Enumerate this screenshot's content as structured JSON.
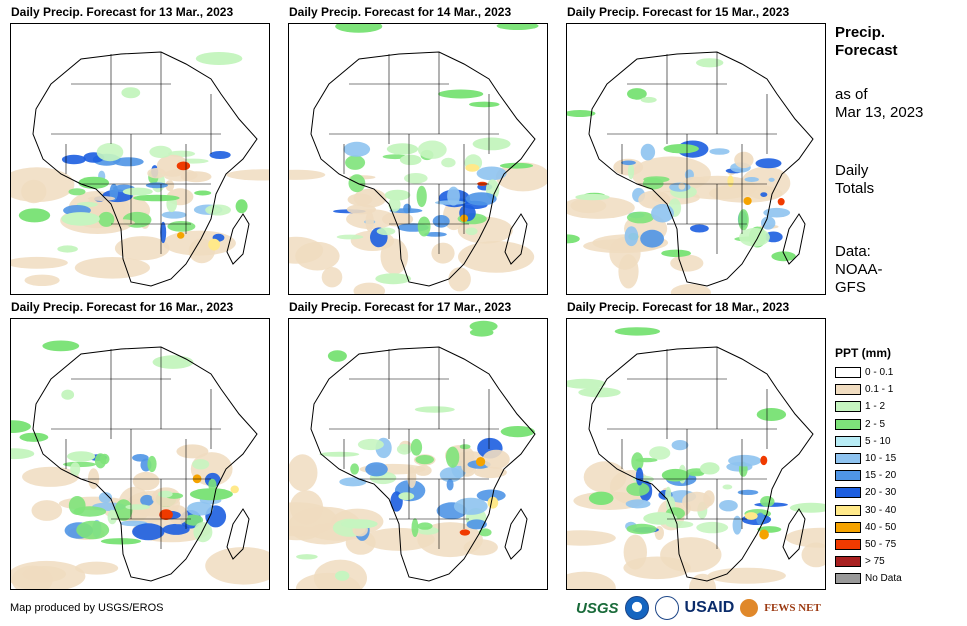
{
  "panels": [
    {
      "title": "Daily Precip. Forecast for 13 Mar., 2023"
    },
    {
      "title": "Daily Precip. Forecast for 14 Mar., 2023"
    },
    {
      "title": "Daily Precip. Forecast for 15 Mar., 2023"
    },
    {
      "title": "Daily Precip. Forecast for 16 Mar., 2023"
    },
    {
      "title": "Daily Precip. Forecast for 17 Mar., 2023"
    },
    {
      "title": "Daily Precip. Forecast for 18 Mar., 2023"
    }
  ],
  "side": {
    "heading_line1": "Precip.",
    "heading_line2": "Forecast",
    "asof_line1": "as of",
    "asof_line2": "Mar 13, 2023",
    "totals_line1": "Daily",
    "totals_line2": "Totals",
    "data_line1": "Data:",
    "data_line2": "NOAA-",
    "data_line3": "GFS"
  },
  "legend": {
    "title": "PPT (mm)",
    "items": [
      {
        "label": "0 - 0.1",
        "color": "#ffffff"
      },
      {
        "label": "0.1 - 1",
        "color": "#f0dcc0"
      },
      {
        "label": "1 - 2",
        "color": "#c6f5c0"
      },
      {
        "label": "2 - 5",
        "color": "#7ee37a"
      },
      {
        "label": "5 - 10",
        "color": "#b8ecf5"
      },
      {
        "label": "10 - 15",
        "color": "#8ec3f0"
      },
      {
        "label": "15 - 20",
        "color": "#4f95e6"
      },
      {
        "label": "20 - 30",
        "color": "#1c5ee0"
      },
      {
        "label": "30 - 40",
        "color": "#ffe98a"
      },
      {
        "label": "40 - 50",
        "color": "#f5a300"
      },
      {
        "label": "50 - 75",
        "color": "#f03a00"
      },
      {
        "label": "> 75",
        "color": "#a82020"
      },
      {
        "label": "No Data",
        "color": "#999999"
      }
    ]
  },
  "credit": "Map produced by USGS/EROS",
  "logos": {
    "usgs": "USGS",
    "noaa": "NOAA",
    "usaid": "USAID",
    "fews": "FEWS NET"
  }
}
